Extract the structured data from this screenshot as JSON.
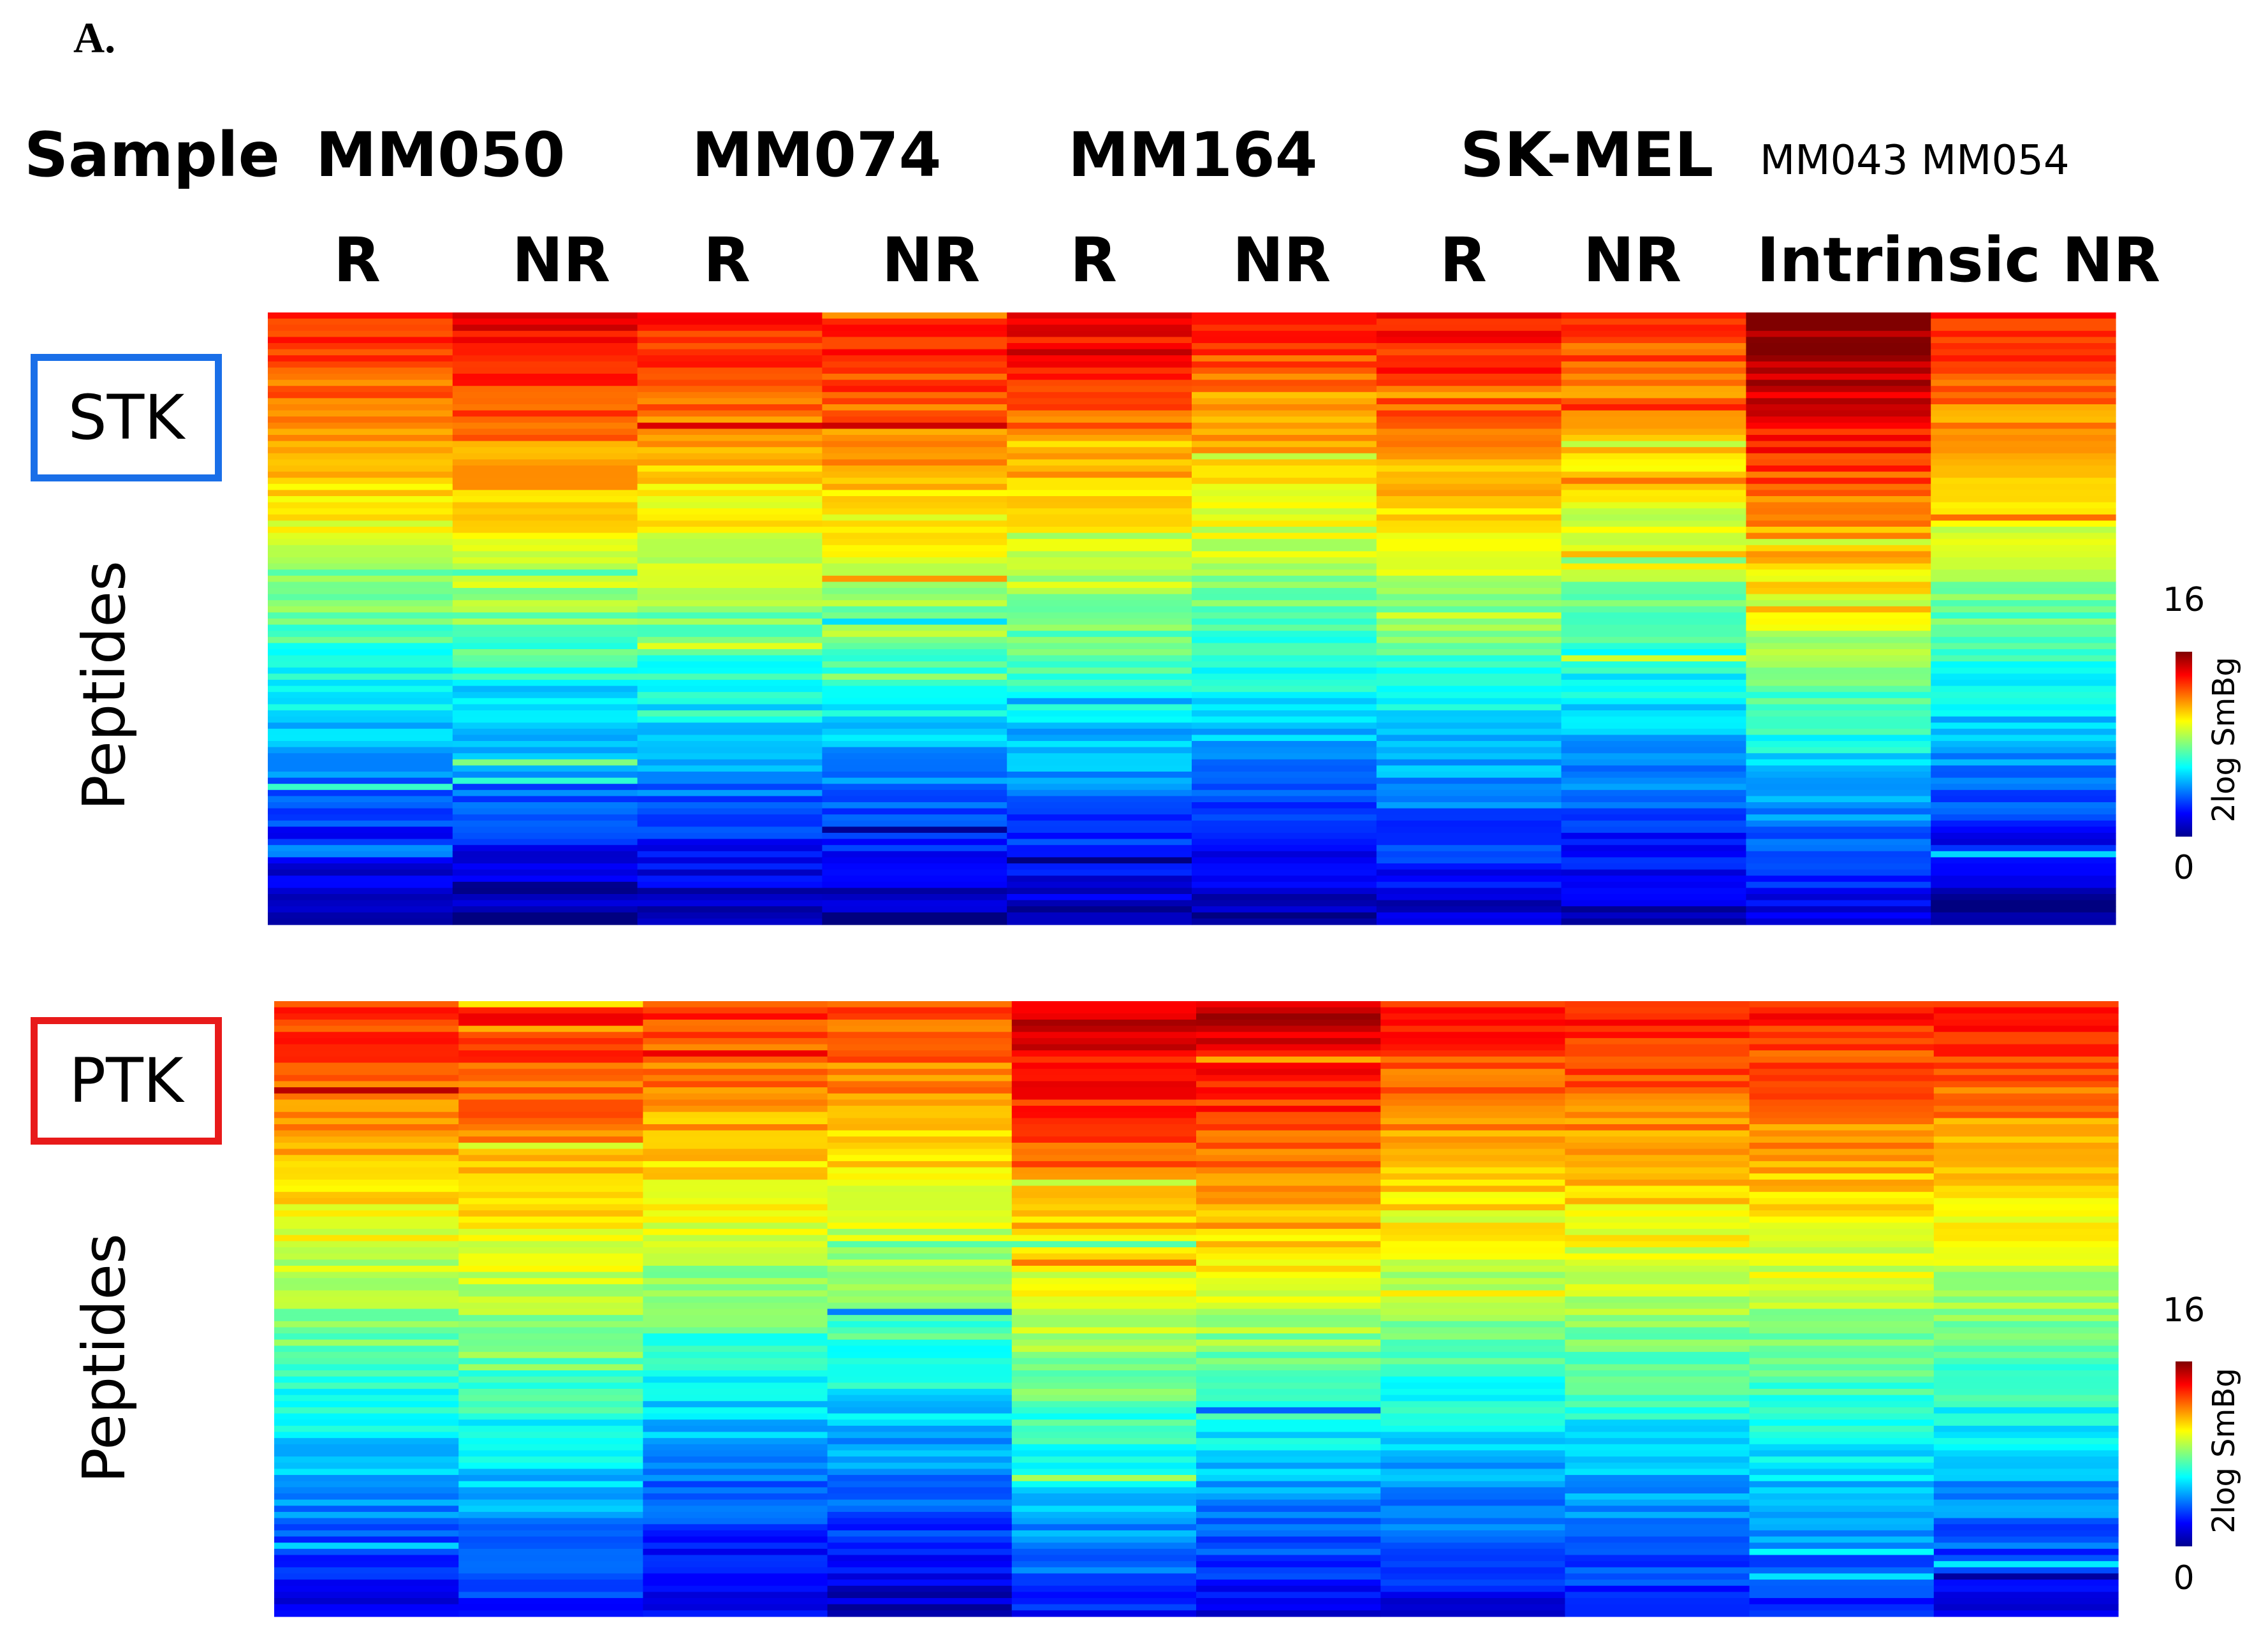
{
  "panel_label": "A.",
  "sample_header": "Sample",
  "groups": [
    {
      "name": "MM050",
      "sub": [
        "R",
        "NR"
      ]
    },
    {
      "name": "MM074",
      "sub": [
        "R",
        "NR"
      ]
    },
    {
      "name": "MM164",
      "sub": [
        "R",
        "NR"
      ]
    },
    {
      "name": "SK-MEL",
      "sub": [
        "R",
        "NR"
      ]
    }
  ],
  "intrinsic": {
    "names": "MM043 MM054",
    "sub": "Intrinsic NR"
  },
  "colors": {
    "stk_box": "#1a6fe8",
    "ptk_box": "#e81a1a"
  },
  "chart_data": [
    {
      "type": "heatmap",
      "panel": "STK",
      "row_label": "Peptides",
      "columns": [
        "MM050 R",
        "MM050 NR",
        "MM074 R",
        "MM074 NR",
        "MM164 R",
        "MM164 NR",
        "SK-MEL R",
        "SK-MEL NR",
        "MM043",
        "MM054"
      ],
      "value_range": [
        0,
        16
      ],
      "colorbar": {
        "title": "2log SmBg",
        "min_label": "0",
        "max_label": "16",
        "colormap": "jet"
      },
      "rows": 100,
      "column_profiles": [
        {
          "top": 13.6,
          "bottom": 0.3
        },
        {
          "top": 14.4,
          "bottom": 0.1
        },
        {
          "top": 13.8,
          "bottom": 0.5
        },
        {
          "top": 14.0,
          "bottom": 0.6
        },
        {
          "top": 14.2,
          "bottom": 0.6
        },
        {
          "top": 13.4,
          "bottom": 0.5
        },
        {
          "top": 14.0,
          "bottom": 0.9
        },
        {
          "top": 13.2,
          "bottom": 0.6
        },
        {
          "top": 16.0,
          "bottom": 1.2
        },
        {
          "top": 13.6,
          "bottom": 0.2
        }
      ]
    },
    {
      "type": "heatmap",
      "panel": "PTK",
      "row_label": "Peptides",
      "columns": [
        "MM050 R",
        "MM050 NR",
        "MM074 R",
        "MM074 NR",
        "MM164 R",
        "MM164 NR",
        "SK-MEL R",
        "SK-MEL NR",
        "MM043",
        "MM054"
      ],
      "value_range": [
        0,
        16
      ],
      "colorbar": {
        "title": "2log SmBg",
        "min_label": "0",
        "max_label": "16",
        "colormap": "jet"
      },
      "rows": 100,
      "column_profiles": [
        {
          "top": 13.4,
          "bottom": 1.8
        },
        {
          "top": 13.6,
          "bottom": 2.4
        },
        {
          "top": 13.2,
          "bottom": 0.8
        },
        {
          "top": 13.0,
          "bottom": 0.9
        },
        {
          "top": 14.8,
          "bottom": 2.5
        },
        {
          "top": 15.0,
          "bottom": 1.6
        },
        {
          "top": 13.6,
          "bottom": 1.6
        },
        {
          "top": 13.8,
          "bottom": 2.0
        },
        {
          "top": 13.6,
          "bottom": 2.6
        },
        {
          "top": 13.6,
          "bottom": 1.8
        }
      ]
    }
  ]
}
